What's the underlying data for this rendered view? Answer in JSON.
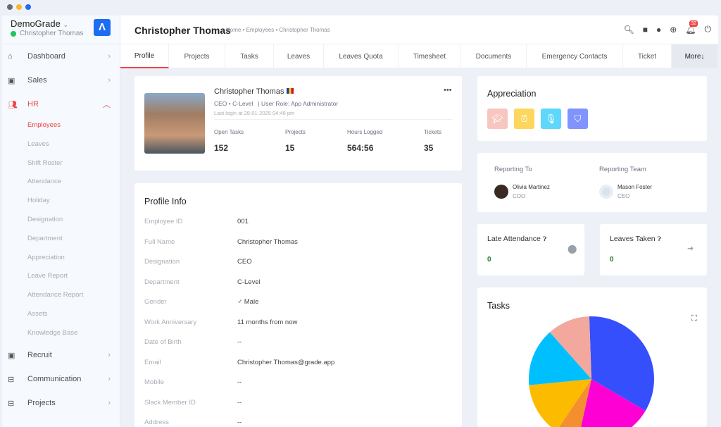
{
  "window": {
    "controls": [
      "#6b6b6b",
      "#f5b82e",
      "#1d6cf2"
    ]
  },
  "sidebar": {
    "workspace": "DemoGrade",
    "user": "Christopher Thomas",
    "items": [
      {
        "label": "Dashboard",
        "icon": "home-icon"
      },
      {
        "label": "Sales",
        "icon": "id-card-icon"
      },
      {
        "label": "HR",
        "icon": "users-icon",
        "active": true
      }
    ],
    "hr_sub": [
      "Employees",
      "Leaves",
      "Shift Roster",
      "Attendance",
      "Holiday",
      "Designation",
      "Department",
      "Appreciation",
      "Leave Report",
      "Attendance Report",
      "Assets",
      "Knowledge Base"
    ],
    "items_after": [
      {
        "label": "Recruit",
        "icon": "badge-icon"
      },
      {
        "label": "Communication",
        "icon": "briefcase-icon"
      },
      {
        "label": "Projects",
        "icon": "briefcase-icon"
      }
    ]
  },
  "header": {
    "title": "Christopher Thomas",
    "breadcrumb": "Home • Employees • Christopher Thomas",
    "notification_count": "32"
  },
  "tabs": [
    "Profile",
    "Projects",
    "Tasks",
    "Leaves",
    "Leaves Quota",
    "Timesheet",
    "Documents",
    "Emergency Contacts",
    "Ticket",
    "More↓"
  ],
  "profile": {
    "name": "Christopher Thomas",
    "role_line": "CEO • C-Level   | User Role: App Administrator",
    "last_login": "Last login at 28-01-2025 04:46 pm",
    "stats": [
      {
        "label": "Open Tasks",
        "value": "152"
      },
      {
        "label": "Projects",
        "value": "15"
      },
      {
        "label": "Hours Logged",
        "value": "564:56"
      },
      {
        "label": "Tickets",
        "value": "35"
      }
    ]
  },
  "profile_info": {
    "title": "Profile Info",
    "rows": [
      [
        "Employee ID",
        "001"
      ],
      [
        "Full Name",
        "Christopher Thomas"
      ],
      [
        "Designation",
        "CEO"
      ],
      [
        "Department",
        "C-Level"
      ],
      [
        "Gender",
        "♂ Male"
      ],
      [
        "Work Anniversary",
        "11 months from now"
      ],
      [
        "Date of Birth",
        "--"
      ],
      [
        "Email",
        "Christopher Thomas@grade.app"
      ],
      [
        "Mobile",
        "--"
      ],
      [
        "Slack Member ID",
        "--"
      ],
      [
        "Address",
        "--"
      ]
    ]
  },
  "appreciation": {
    "title": "Appreciation",
    "badges": [
      {
        "icon": "graduation-cap-icon",
        "color": "#f7c6c0"
      },
      {
        "icon": "alarm-clock-icon",
        "color": "#fdd65e"
      },
      {
        "icon": "microphone-icon",
        "color": "#5fd7fb"
      },
      {
        "icon": "shield-check-icon",
        "color": "#8193fc"
      }
    ]
  },
  "reporting": {
    "to_label": "Reporting To",
    "team_label": "Reporting Team",
    "to": {
      "name": "Olivia Martinez",
      "title": "COO"
    },
    "team": {
      "name": "Mason Foster",
      "title": "CEO"
    }
  },
  "late_attendance": {
    "label": "Late Attendance",
    "value": "0"
  },
  "leaves_taken": {
    "label": "Leaves Taken",
    "value": "0"
  },
  "chart_data": {
    "type": "pie",
    "title": "Tasks",
    "values": [
      34,
      20,
      6,
      14,
      15,
      11
    ],
    "colors": [
      "#354ffd",
      "#ff00d4",
      "#f38f2e",
      "#fdbb00",
      "#00bfff",
      "#f2a89c"
    ]
  }
}
